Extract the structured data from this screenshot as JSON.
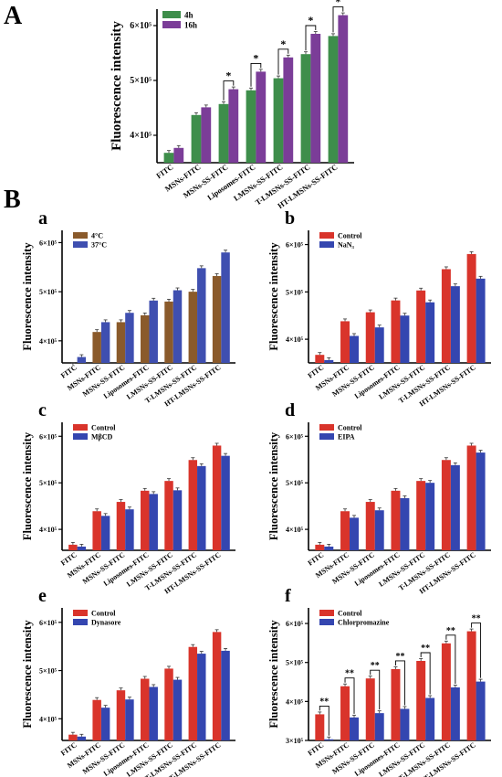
{
  "figure": {
    "label_A": "A",
    "label_B": "B"
  },
  "chart_data": [
    {
      "panel": "A",
      "type": "bar",
      "ylabel": "Fluorescence intensity",
      "yticks": [
        "4×10⁵",
        "5×10⁵",
        "6×10⁵"
      ],
      "ytick_values": [
        400000,
        500000,
        600000
      ],
      "ylim": [
        350000,
        630000
      ],
      "categories": [
        "FITC",
        "MSNs-FITC",
        "MSNs-SS-FITC",
        "Liposomes-FITC",
        "LMSNs-SS-FITC",
        "T-LMSNs-SS-FITC",
        "HT-LMSNs-SS-FITC"
      ],
      "series": [
        {
          "name": "4h",
          "color": "#3e8e4b",
          "values": [
            368000,
            437000,
            457000,
            482000,
            504000,
            548000,
            581000
          ]
        },
        {
          "name": "16h",
          "color": "#7b3d98",
          "values": [
            377000,
            451000,
            484000,
            516000,
            542000,
            585000,
            619000
          ]
        }
      ],
      "significance": [
        "",
        "",
        "*",
        "*",
        "*",
        "*",
        "*"
      ],
      "legend": "top-left"
    },
    {
      "panel": "a",
      "type": "bar",
      "ylabel": "Fluorescence intensity",
      "yticks": [
        "4×10⁵",
        "5×10⁵",
        "6×10⁵"
      ],
      "ytick_values": [
        400000,
        500000,
        600000
      ],
      "ylim": [
        355000,
        625000
      ],
      "categories": [
        "FITC",
        "MSNs-FITC",
        "MSNs-SS-FITC",
        "Liposomes-FITC",
        "LMSNs-SS-FITC",
        "T-LMSNs-SS-FITC",
        "HT-LMSNs-SS-FITC"
      ],
      "series": [
        {
          "name": "4°C",
          "color": "#8a5a2b",
          "values": [
            350000,
            418000,
            438000,
            452000,
            480000,
            500000,
            532000
          ]
        },
        {
          "name": "37°C",
          "color": "#3f4fb0",
          "values": [
            367000,
            438000,
            457000,
            482000,
            503000,
            548000,
            580000
          ]
        }
      ],
      "significance": [
        "",
        "",
        "",
        "",
        "",
        "",
        ""
      ],
      "legend": "top-left"
    },
    {
      "panel": "b",
      "type": "bar",
      "ylabel": "Fluorescence intensity",
      "yticks": [
        "4×10⁵",
        "5×10⁵",
        "6×10⁵"
      ],
      "ytick_values": [
        400000,
        500000,
        600000
      ],
      "ylim": [
        350000,
        630000
      ],
      "categories": [
        "FITC",
        "MSNs-FITC",
        "MSNs-SS-FITC",
        "Liposomes-FITC",
        "LMSNs-SS-FITC",
        "T-LMSNs-SS-FITC",
        "HT-LMSNs-SS-FITC"
      ],
      "series": [
        {
          "name": "Control",
          "color": "#d9342b",
          "values": [
            367000,
            438000,
            457000,
            482000,
            503000,
            548000,
            580000
          ]
        },
        {
          "name": "NaN₃",
          "color": "#3446b0",
          "values": [
            356000,
            407000,
            425000,
            450000,
            478000,
            512000,
            528000
          ]
        }
      ],
      "significance": [
        "",
        "",
        "",
        "",
        "",
        "",
        ""
      ],
      "legend": "top-left"
    },
    {
      "panel": "c",
      "type": "bar",
      "ylabel": "Fluorescence intensity",
      "yticks": [
        "4×10⁵",
        "5×10⁵",
        "6×10⁵"
      ],
      "ytick_values": [
        400000,
        500000,
        600000
      ],
      "ylim": [
        355000,
        630000
      ],
      "categories": [
        "FITC",
        "MSNs-FITC",
        "MSNs-SS-FITC",
        "Liposomes-FITC",
        "LMSNs-SS-FITC",
        "T-LMSNs-SS-FITC",
        "HT-LMSNs-SS-FITC"
      ],
      "series": [
        {
          "name": "Control",
          "color": "#d9342b",
          "values": [
            367000,
            439000,
            459000,
            483000,
            504000,
            549000,
            580000
          ]
        },
        {
          "name": "MβCD",
          "color": "#3446b0",
          "values": [
            363000,
            429000,
            443000,
            476000,
            484000,
            536000,
            558000
          ]
        }
      ],
      "significance": [
        "",
        "",
        "",
        "",
        "",
        "",
        ""
      ],
      "legend": "top-left"
    },
    {
      "panel": "d",
      "type": "bar",
      "ylabel": "Fluorescence intensity",
      "yticks": [
        "4×10⁵",
        "5×10⁵",
        "6×10⁵"
      ],
      "ytick_values": [
        400000,
        500000,
        600000
      ],
      "ylim": [
        355000,
        630000
      ],
      "categories": [
        "FITC",
        "MSNs-FITC",
        "MSNs-SS-FITC",
        "Liposomes-FITC",
        "LMSNs-SS-FITC",
        "T-LMSNs-SS-FITC",
        "HT-LMSNs-SS-FITC"
      ],
      "series": [
        {
          "name": "Control",
          "color": "#d9342b",
          "values": [
            367000,
            439000,
            459000,
            483000,
            504000,
            549000,
            580000
          ]
        },
        {
          "name": "EIPA",
          "color": "#3446b0",
          "values": [
            363000,
            425000,
            441000,
            467000,
            500000,
            538000,
            565000
          ]
        }
      ],
      "significance": [
        "",
        "",
        "",
        "",
        "",
        "",
        ""
      ],
      "legend": "top-left"
    },
    {
      "panel": "e",
      "type": "bar",
      "ylabel": "Fluorescence intensity",
      "yticks": [
        "4×10⁵",
        "5×10⁵",
        "6×10⁵"
      ],
      "ytick_values": [
        400000,
        500000,
        600000
      ],
      "ylim": [
        355000,
        630000
      ],
      "categories": [
        "FITC",
        "MSNs-FITC",
        "MSNs-SS-FITC",
        "Liposomes-FITC",
        "LMSNs-SS-FITC",
        "T-LMSNs-SS-FITC",
        "HT-LMSNs-SS-FITC"
      ],
      "series": [
        {
          "name": "Control",
          "color": "#d9342b",
          "values": [
            367000,
            439000,
            459000,
            483000,
            504000,
            549000,
            580000
          ]
        },
        {
          "name": "Dynasore",
          "color": "#3446b0",
          "values": [
            363000,
            423000,
            440000,
            466000,
            481000,
            535000,
            541000
          ]
        }
      ],
      "significance": [
        "",
        "",
        "",
        "",
        "",
        "",
        ""
      ],
      "legend": "top-left"
    },
    {
      "panel": "f",
      "type": "bar",
      "ylabel": "Fluorescence intensity",
      "yticks": [
        "3×10⁵",
        "4×10⁵",
        "5×10⁵",
        "6×10⁵"
      ],
      "ytick_values": [
        300000,
        400000,
        500000,
        600000
      ],
      "ylim": [
        300000,
        640000
      ],
      "categories": [
        "FITC",
        "MSNs-FITC",
        "MSNs-SS-FITC",
        "Liposomes-FITC",
        "LMSNs-SS-FITC",
        "T-LMSNs-SS-FITC",
        "HT-LMSNs-SS-FITC"
      ],
      "series": [
        {
          "name": "Control",
          "color": "#d9342b",
          "values": [
            367000,
            439000,
            459000,
            483000,
            504000,
            549000,
            580000
          ]
        },
        {
          "name": "Chlorpromazine",
          "color": "#3446b0",
          "values": [
            303000,
            359000,
            370000,
            381000,
            409000,
            436000,
            451000
          ]
        }
      ],
      "significance": [
        "**",
        "**",
        "**",
        "**",
        "**",
        "**",
        "**"
      ],
      "legend": "top-left"
    }
  ]
}
